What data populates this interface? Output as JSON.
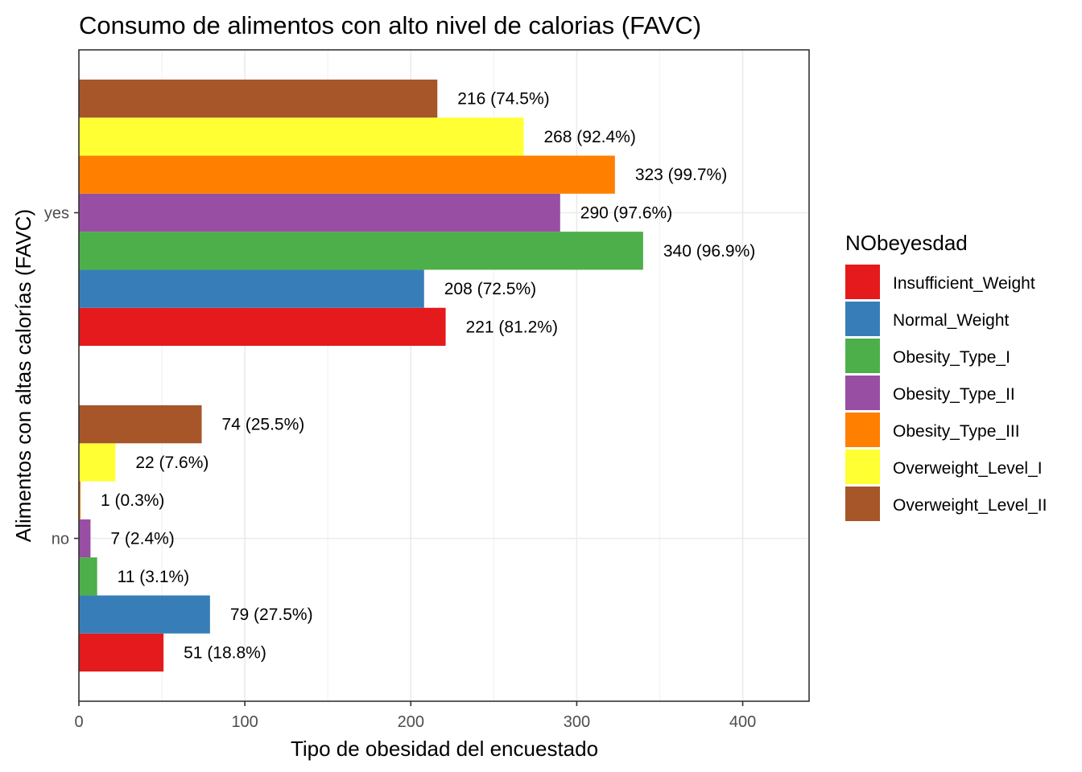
{
  "chart_data": {
    "type": "bar",
    "orientation": "horizontal",
    "title": "Consumo de alimentos con alto nivel de calorias (FAVC)",
    "xlabel": "Tipo de obesidad del encuestado",
    "ylabel": "Alimentos con altas calorías (FAVC)",
    "categories": [
      "no",
      "yes"
    ],
    "xlim": [
      0,
      440
    ],
    "x_ticks": [
      0,
      100,
      200,
      300,
      400
    ],
    "grid": true,
    "legend_title": "NObeyesdad",
    "legend_position": "right",
    "series": [
      {
        "name": "Insufficient_Weight",
        "color": "#E41A1C",
        "values": [
          51,
          221
        ],
        "labels": [
          "51 (18.8%)",
          "221 (81.2%)"
        ]
      },
      {
        "name": "Normal_Weight",
        "color": "#377EB8",
        "values": [
          79,
          208
        ],
        "labels": [
          "79 (27.5%)",
          "208 (72.5%)"
        ]
      },
      {
        "name": "Obesity_Type_I",
        "color": "#4DAF4A",
        "values": [
          11,
          340
        ],
        "labels": [
          "11 (3.1%)",
          "340 (96.9%)"
        ]
      },
      {
        "name": "Obesity_Type_II",
        "color": "#984EA3",
        "values": [
          7,
          290
        ],
        "labels": [
          "7 (2.4%)",
          "290 (97.6%)"
        ]
      },
      {
        "name": "Obesity_Type_III",
        "color": "#FF7F00",
        "values": [
          1,
          323
        ],
        "labels": [
          "1 (0.3%)",
          "323 (99.7%)"
        ]
      },
      {
        "name": "Overweight_Level_I",
        "color": "#FFFF33",
        "values": [
          22,
          268
        ],
        "labels": [
          "22 (7.6%)",
          "268 (92.4%)"
        ]
      },
      {
        "name": "Overweight_Level_II",
        "color": "#A65628",
        "values": [
          74,
          216
        ],
        "labels": [
          "74 (25.5%)",
          "216 (74.5%)"
        ]
      }
    ]
  }
}
